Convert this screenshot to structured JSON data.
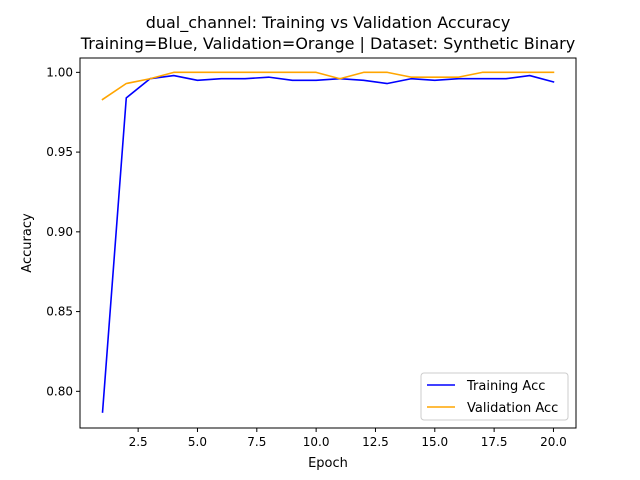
{
  "chart_data": {
    "type": "line",
    "title_line1": "dual_channel: Training vs Validation Accuracy",
    "title_line2": "Training=Blue, Validation=Orange | Dataset: Synthetic Binary",
    "xlabel": "Epoch",
    "ylabel": "Accuracy",
    "xlim": [
      0.05,
      20.95
    ],
    "ylim": [
      0.777,
      1.009
    ],
    "xticks": [
      2.5,
      5.0,
      7.5,
      10.0,
      12.5,
      15.0,
      17.5,
      20.0
    ],
    "xtick_labels": [
      "2.5",
      "5.0",
      "7.5",
      "10.0",
      "12.5",
      "15.0",
      "17.5",
      "20.0"
    ],
    "yticks": [
      0.8,
      0.85,
      0.9,
      0.95,
      1.0
    ],
    "ytick_labels": [
      "0.80",
      "0.85",
      "0.90",
      "0.95",
      "1.00"
    ],
    "grid": false,
    "legend_position": "lower-right",
    "x": [
      1,
      2,
      3,
      4,
      5,
      6,
      7,
      8,
      9,
      10,
      11,
      12,
      13,
      14,
      15,
      16,
      17,
      18,
      19,
      20
    ],
    "series": [
      {
        "name": "Training Acc",
        "color": "#0000ff",
        "values": [
          0.787,
          0.984,
          0.996,
          0.998,
          0.995,
          0.996,
          0.996,
          0.997,
          0.995,
          0.995,
          0.996,
          0.995,
          0.993,
          0.996,
          0.995,
          0.996,
          0.996,
          0.996,
          0.998,
          0.994
        ]
      },
      {
        "name": "Validation Acc",
        "color": "#ffa500",
        "values": [
          0.983,
          0.993,
          0.996,
          1.0,
          1.0,
          1.0,
          1.0,
          1.0,
          1.0,
          1.0,
          0.996,
          1.0,
          1.0,
          0.997,
          0.997,
          0.997,
          1.0,
          1.0,
          1.0,
          1.0
        ]
      }
    ]
  }
}
